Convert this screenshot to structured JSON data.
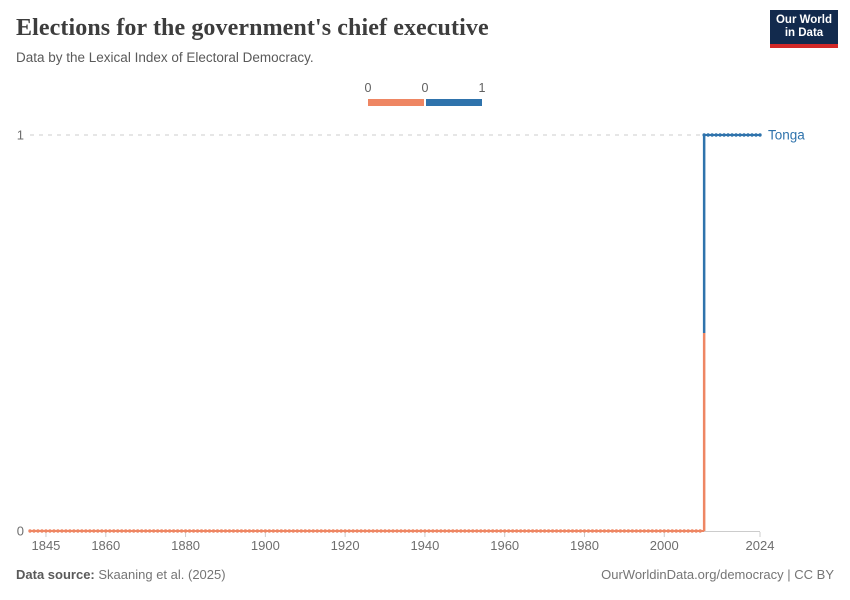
{
  "header": {
    "title": "Elections for the government's chief executive",
    "subtitle": "Data by the Lexical Index of Electoral Democracy."
  },
  "logo": {
    "line1": "Our World",
    "line2": "in Data",
    "bg_color": "#122a4d",
    "accent_color": "#d22827"
  },
  "legend": {
    "labels": [
      "0",
      "0",
      "1"
    ],
    "colors": [
      "#EE8663",
      "#2F73AC"
    ]
  },
  "chart_data": {
    "type": "line",
    "subtype": "step",
    "title": "Elections for the government's chief executive",
    "xlabel": "",
    "ylabel": "",
    "x_range": [
      1841,
      2024
    ],
    "y_range": [
      0,
      1
    ],
    "x_ticks": [
      1845,
      1860,
      1880,
      1900,
      1920,
      1940,
      1960,
      1980,
      2000,
      2024
    ],
    "y_ticks": [
      1,
      0
    ],
    "grid": "dashed horizontal line at y=1 only",
    "legend_position": "top-center color scale",
    "series": [
      {
        "name": "Tonga",
        "label_color": "#2F73AC",
        "color_low": "#EE8663",
        "color_high": "#2F73AC",
        "segments": [
          {
            "from_year": 1841,
            "to_year": 2009,
            "value": 0
          },
          {
            "from_year": 2010,
            "to_year": 2024,
            "value": 1
          }
        ],
        "markers": "one dot per year"
      }
    ]
  },
  "footer": {
    "source_label": "Data source:",
    "source_value": "Skaaning et al. (2025)",
    "right_text": "OurWorldinData.org/democracy | CC BY"
  },
  "colors": {
    "value_low": "#EE8663",
    "value_high": "#2F73AC",
    "axis": "#cccccc",
    "gridline": "#cccccc",
    "tick_label": "#6e6e6e"
  }
}
